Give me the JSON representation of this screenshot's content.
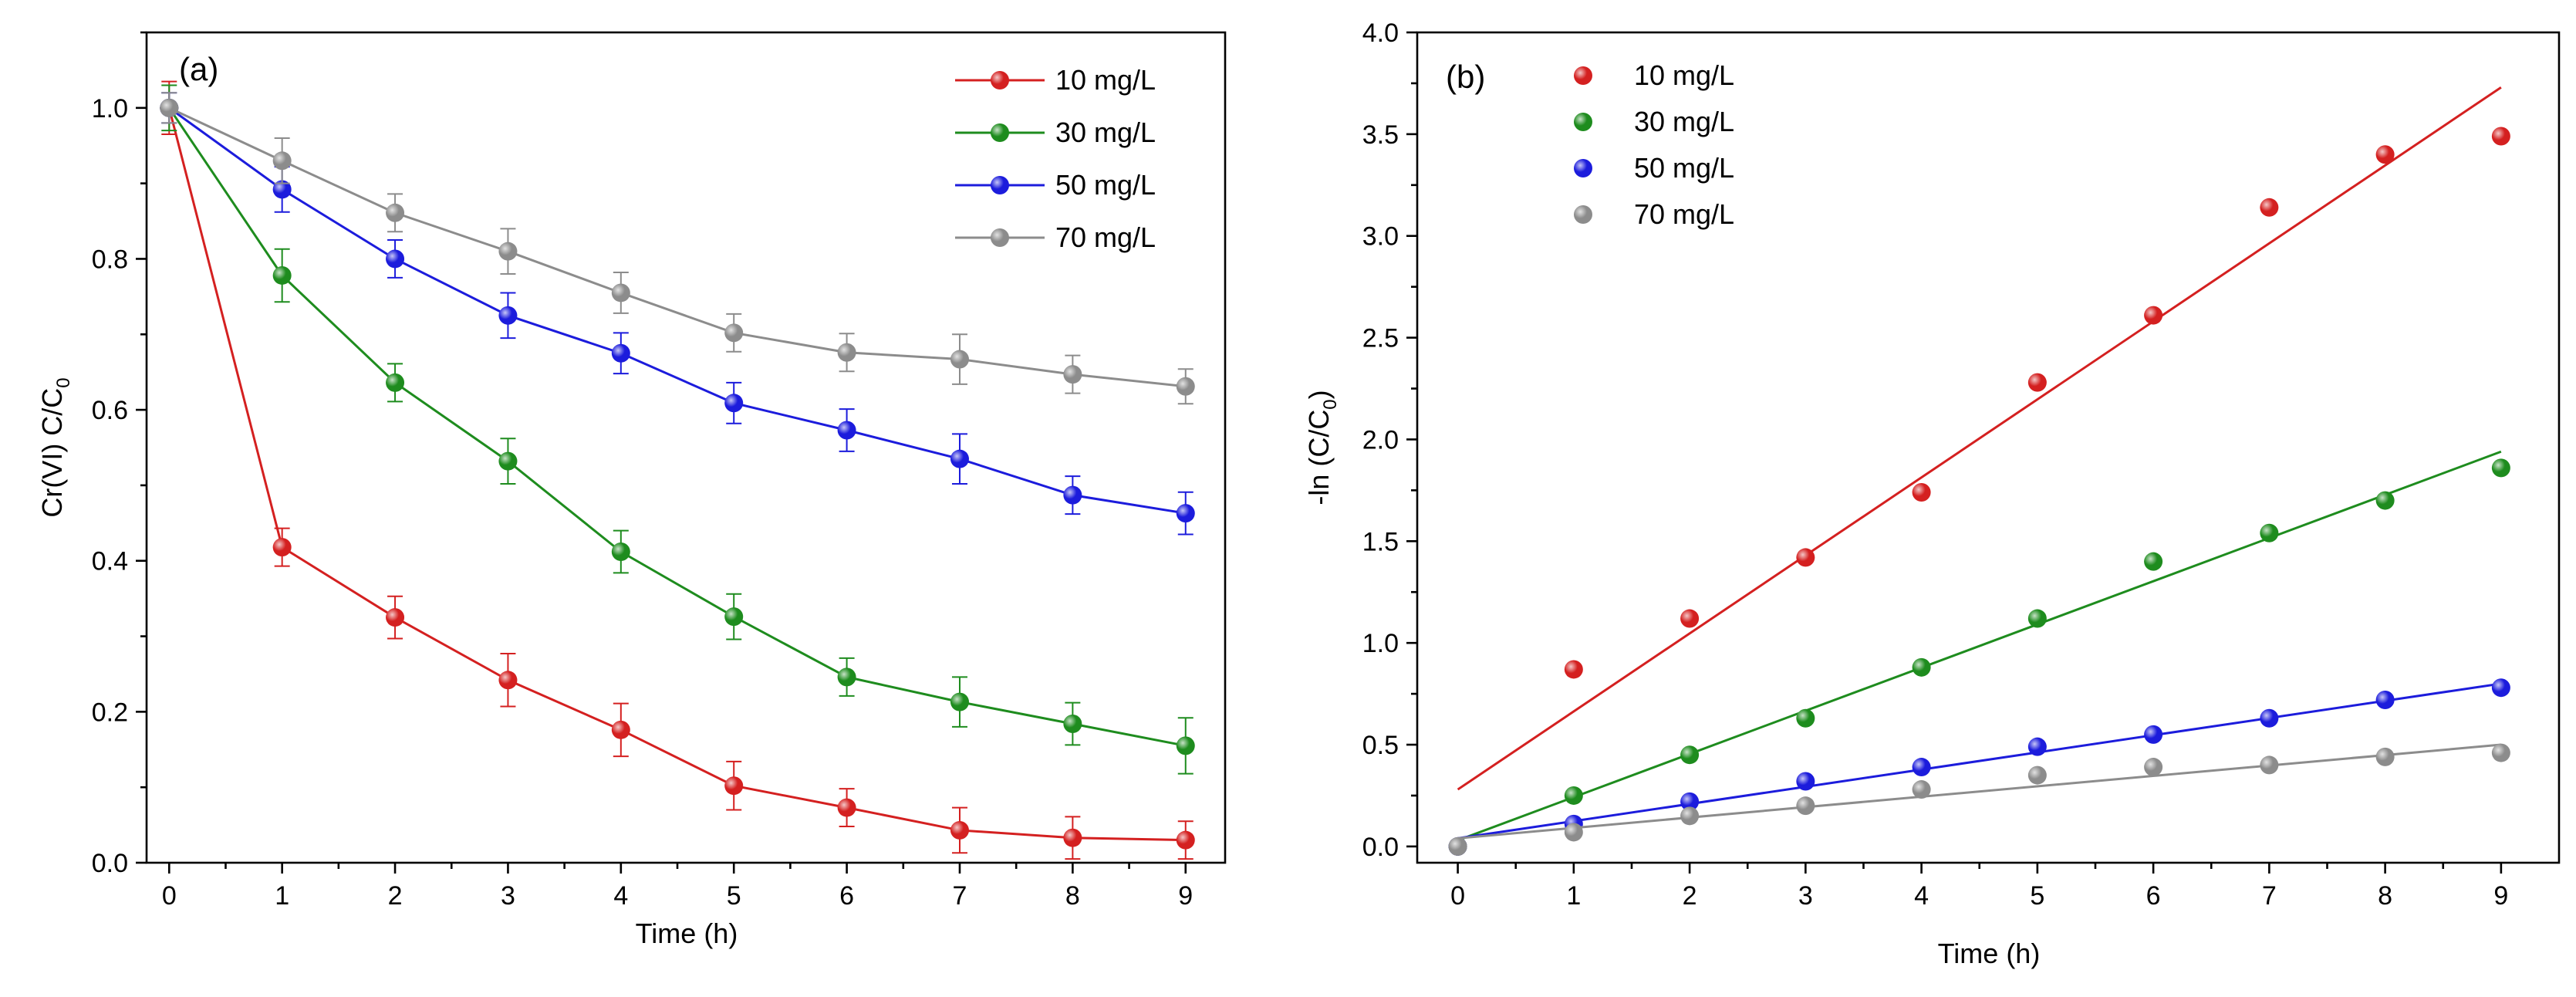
{
  "chart_data": [
    {
      "type": "line",
      "panel_label": "(a)",
      "xlabel": "Time (h)",
      "ylabel_main": "Cr(VI) C/C",
      "ylabel_sub": "0",
      "xlim": [
        -0.2,
        9.35
      ],
      "ylim": [
        0.0,
        1.1
      ],
      "x_ticks": [
        0,
        1,
        2,
        3,
        4,
        5,
        6,
        7,
        8,
        9
      ],
      "x_tick_labels": [
        "0",
        "1",
        "2",
        "3",
        "4",
        "5",
        "6",
        "7",
        "8",
        "9"
      ],
      "y_ticks": [
        0.0,
        0.2,
        0.4,
        0.6,
        0.8,
        1.0
      ],
      "y_tick_labels": [
        "0.0",
        "0.2",
        "0.4",
        "0.6",
        "0.8",
        "1.0"
      ],
      "legend_position": "top-right",
      "x": [
        0,
        1,
        2,
        3,
        4,
        5,
        6,
        7,
        8,
        9
      ],
      "series": [
        {
          "name": "10 mg/L",
          "color": "#d42020",
          "values": [
            1.0,
            0.418,
            0.325,
            0.242,
            0.176,
            0.102,
            0.073,
            0.043,
            0.033,
            0.03
          ],
          "errors": [
            0.035,
            0.025,
            0.028,
            0.035,
            0.035,
            0.032,
            0.025,
            0.03,
            0.028,
            0.025
          ]
        },
        {
          "name": "30 mg/L",
          "color": "#1e8c1e",
          "values": [
            1.0,
            0.778,
            0.636,
            0.532,
            0.412,
            0.326,
            0.246,
            0.213,
            0.184,
            0.155
          ],
          "errors": [
            0.03,
            0.035,
            0.025,
            0.03,
            0.028,
            0.03,
            0.025,
            0.033,
            0.028,
            0.037
          ]
        },
        {
          "name": "50 mg/L",
          "color": "#1c1cdc",
          "values": [
            1.0,
            0.892,
            0.8,
            0.725,
            0.675,
            0.609,
            0.573,
            0.535,
            0.487,
            0.463
          ],
          "errors": [
            0.02,
            0.03,
            0.025,
            0.03,
            0.027,
            0.027,
            0.028,
            0.033,
            0.025,
            0.028
          ]
        },
        {
          "name": "70 mg/L",
          "color": "#8c8c8c",
          "values": [
            1.0,
            0.93,
            0.861,
            0.81,
            0.755,
            0.702,
            0.676,
            0.667,
            0.647,
            0.631
          ],
          "errors": [
            0.02,
            0.03,
            0.025,
            0.03,
            0.027,
            0.025,
            0.025,
            0.033,
            0.025,
            0.023
          ]
        }
      ]
    },
    {
      "type": "scatter",
      "panel_label": "(b)",
      "xlabel": "Time (h)",
      "ylabel_main": "-ln (C/C",
      "ylabel_sub": "0",
      "ylabel_end": ")",
      "xlim": [
        -0.35,
        9.5
      ],
      "ylim": [
        -0.08,
        4.0
      ],
      "x_ticks": [
        0,
        1,
        2,
        3,
        4,
        5,
        6,
        7,
        8,
        9
      ],
      "x_tick_labels": [
        "0",
        "1",
        "2",
        "3",
        "4",
        "5",
        "6",
        "7",
        "8",
        "9"
      ],
      "y_ticks": [
        0.0,
        0.5,
        1.0,
        1.5,
        2.0,
        2.5,
        3.0,
        3.5,
        4.0
      ],
      "y_tick_labels": [
        "0.0",
        "0.5",
        "1.0",
        "1.5",
        "2.0",
        "2.5",
        "3.0",
        "3.5",
        "4.0"
      ],
      "legend_position": "top-left",
      "x": [
        0,
        1,
        2,
        3,
        4,
        5,
        6,
        7,
        8,
        9
      ],
      "series": [
        {
          "name": "10 mg/L",
          "color": "#d42020",
          "values": [
            0.0,
            0.87,
            1.12,
            1.42,
            1.74,
            2.28,
            2.61,
            3.14,
            3.4,
            3.49
          ],
          "fit": [
            0.28,
            3.73
          ]
        },
        {
          "name": "30 mg/L",
          "color": "#1e8c1e",
          "values": [
            0.0,
            0.25,
            0.45,
            0.63,
            0.88,
            1.12,
            1.4,
            1.54,
            1.7,
            1.86
          ],
          "fit": [
            0.03,
            1.94
          ]
        },
        {
          "name": "50 mg/L",
          "color": "#1c1cdc",
          "values": [
            0.0,
            0.11,
            0.22,
            0.32,
            0.39,
            0.49,
            0.55,
            0.63,
            0.72,
            0.78
          ],
          "fit": [
            0.04,
            0.8
          ]
        },
        {
          "name": "70 mg/L",
          "color": "#8c8c8c",
          "values": [
            0.0,
            0.07,
            0.15,
            0.2,
            0.28,
            0.35,
            0.39,
            0.4,
            0.44,
            0.46
          ],
          "fit": [
            0.04,
            0.5
          ]
        }
      ]
    }
  ]
}
